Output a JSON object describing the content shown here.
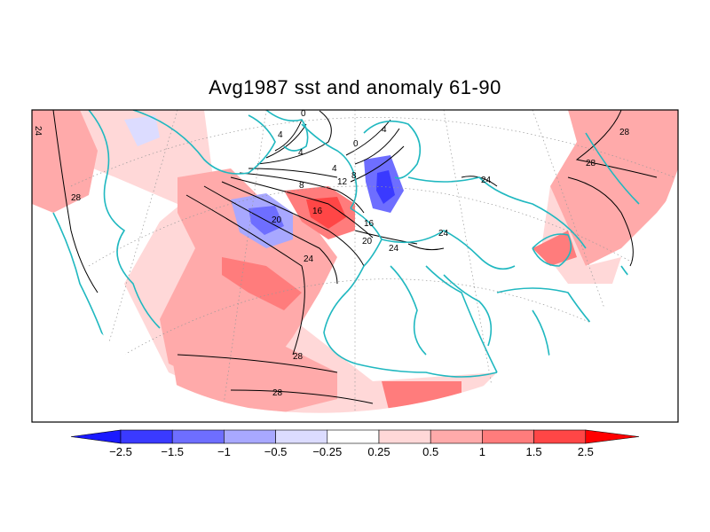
{
  "title": "Avg1987 sst and anomaly 61-90",
  "colors": {
    "coast": "#20b8c0",
    "contour": "#000000",
    "anomaly_strong_neg": "#3a3aff",
    "anomaly_neg": "#6e6eff",
    "anomaly_weak_neg": "#a8a8ff",
    "anomaly_faint_neg": "#dcdcff",
    "anomaly_faint_pos": "#ffd8d8",
    "anomaly_weak_pos": "#ffaaaa",
    "anomaly_pos": "#ff7c7c",
    "anomaly_strong_pos": "#ff4646"
  },
  "contour_labels": [
    "0",
    "4",
    "0",
    "4",
    "4",
    "8",
    "4",
    "12",
    "8",
    "16",
    "20",
    "16",
    "20",
    "24",
    "24",
    "24",
    "24",
    "28",
    "28",
    "28",
    "28",
    "28",
    "24"
  ],
  "colorbar": {
    "ticks": [
      "−2.5",
      "−1.5",
      "−1",
      "−0.5",
      "−0.25",
      "0.25",
      "0.5",
      "1",
      "1.5",
      "2.5"
    ],
    "colors": [
      "#1a1aff",
      "#3a3aff",
      "#6e6eff",
      "#a8a8ff",
      "#dcdcff",
      "#ffffff",
      "#ffd8d8",
      "#ffaaaa",
      "#ff7c7c",
      "#ff4646",
      "#ff0000"
    ]
  }
}
